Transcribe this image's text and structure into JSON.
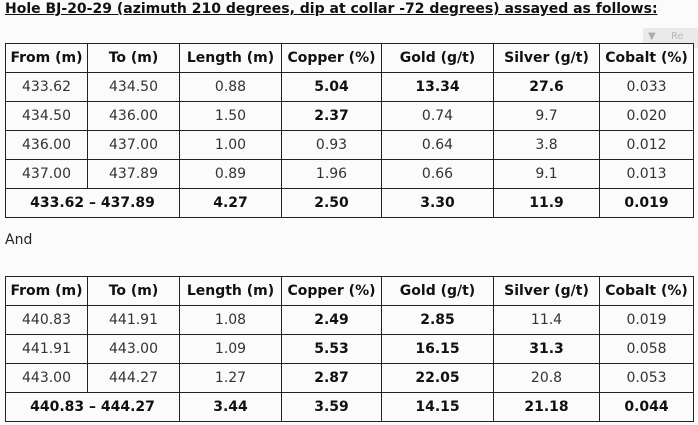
{
  "heading": "Hole BJ-20-29 (azimuth 210 degrees, dip at collar -72 degrees) assayed as follows:",
  "widget": {
    "arrow": "▼",
    "text": "Re"
  },
  "headers": [
    "From (m)",
    "To (m)",
    "Length (m)",
    "Copper (%)",
    "Gold (g/t)",
    "Silver (g/t)",
    "Cobalt (%)"
  ],
  "connector": "And",
  "tables": [
    {
      "rows": [
        {
          "from": "433.62",
          "to": "434.50",
          "length": "0.88",
          "copper": "5.04",
          "gold": "13.34",
          "silver": "27.6",
          "cobalt": "0.033",
          "bold": [
            "copper",
            "gold",
            "silver"
          ]
        },
        {
          "from": "434.50",
          "to": "436.00",
          "length": "1.50",
          "copper": "2.37",
          "gold": "0.74",
          "silver": "9.7",
          "cobalt": "0.020",
          "bold": [
            "copper"
          ]
        },
        {
          "from": "436.00",
          "to": "437.00",
          "length": "1.00",
          "copper": "0.93",
          "gold": "0.64",
          "silver": "3.8",
          "cobalt": "0.012",
          "bold": []
        },
        {
          "from": "437.00",
          "to": "437.89",
          "length": "0.89",
          "copper": "1.96",
          "gold": "0.66",
          "silver": "9.1",
          "cobalt": "0.013",
          "bold": []
        }
      ],
      "total": {
        "interval": "433.62 – 437.89",
        "length": "4.27",
        "copper": "2.50",
        "gold": "3.30",
        "silver": "11.9",
        "cobalt": "0.019"
      }
    },
    {
      "rows": [
        {
          "from": "440.83",
          "to": "441.91",
          "length": "1.08",
          "copper": "2.49",
          "gold": "2.85",
          "silver": "11.4",
          "cobalt": "0.019",
          "bold": [
            "copper",
            "gold"
          ]
        },
        {
          "from": "441.91",
          "to": "443.00",
          "length": "1.09",
          "copper": "5.53",
          "gold": "16.15",
          "silver": "31.3",
          "cobalt": "0.058",
          "bold": [
            "copper",
            "gold",
            "silver"
          ]
        },
        {
          "from": "443.00",
          "to": "444.27",
          "length": "1.27",
          "copper": "2.87",
          "gold": "22.05",
          "silver": "20.8",
          "cobalt": "0.053",
          "bold": [
            "copper",
            "gold"
          ]
        }
      ],
      "total": {
        "interval": "440.83 – 444.27",
        "length": "3.44",
        "copper": "3.59",
        "gold": "14.15",
        "silver": "21.18",
        "cobalt": "0.044"
      }
    }
  ]
}
